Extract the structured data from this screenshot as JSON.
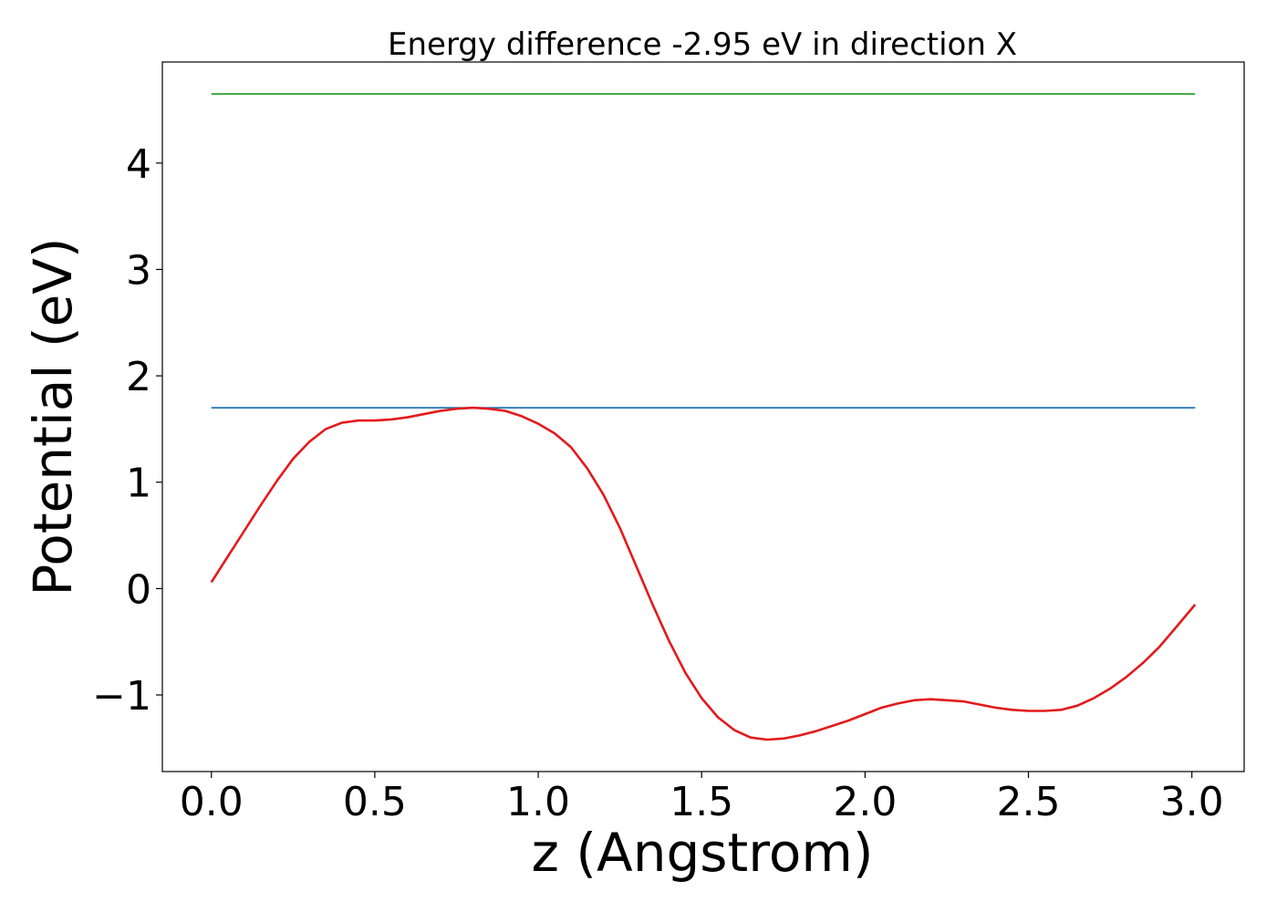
{
  "chart_data": {
    "type": "line",
    "title": "Energy difference -2.95 eV in direction X",
    "xlabel": "z (Angstrom)",
    "ylabel": "Potential (eV)",
    "xlim": [
      -0.15,
      3.16
    ],
    "ylim": [
      -1.72,
      4.95
    ],
    "xticks": [
      0.0,
      0.5,
      1.0,
      1.5,
      2.0,
      2.5,
      3.0
    ],
    "xtick_labels": [
      "0.0",
      "0.5",
      "1.0",
      "1.5",
      "2.0",
      "2.5",
      "3.0"
    ],
    "yticks": [
      -1,
      0,
      1,
      2,
      3,
      4
    ],
    "ytick_labels": [
      "−1",
      "0",
      "1",
      "2",
      "3",
      "4"
    ],
    "grid": false,
    "legend": false,
    "series": [
      {
        "color": "#2ca02c",
        "kind": "hline",
        "x": [
          0.0,
          3.01
        ],
        "y": [
          4.65,
          4.65
        ]
      },
      {
        "color": "#1f77b4",
        "kind": "hline",
        "x": [
          0.0,
          3.01
        ],
        "y": [
          1.7,
          1.7
        ]
      },
      {
        "color": "#e31a1c",
        "kind": "line",
        "x": [
          0.0,
          0.05,
          0.1,
          0.15,
          0.2,
          0.25,
          0.3,
          0.35,
          0.4,
          0.45,
          0.5,
          0.55,
          0.6,
          0.65,
          0.7,
          0.75,
          0.8,
          0.85,
          0.9,
          0.95,
          1.0,
          1.05,
          1.1,
          1.15,
          1.2,
          1.25,
          1.3,
          1.35,
          1.4,
          1.45,
          1.5,
          1.55,
          1.6,
          1.65,
          1.7,
          1.75,
          1.8,
          1.85,
          1.9,
          1.95,
          2.0,
          2.05,
          2.1,
          2.15,
          2.2,
          2.25,
          2.3,
          2.35,
          2.4,
          2.45,
          2.5,
          2.55,
          2.6,
          2.65,
          2.7,
          2.75,
          2.8,
          2.85,
          2.9,
          2.95,
          3.01
        ],
        "y": [
          0.06,
          0.3,
          0.54,
          0.78,
          1.01,
          1.22,
          1.38,
          1.5,
          1.56,
          1.58,
          1.58,
          1.59,
          1.61,
          1.64,
          1.67,
          1.69,
          1.7,
          1.69,
          1.67,
          1.62,
          1.55,
          1.46,
          1.33,
          1.13,
          0.88,
          0.57,
          0.21,
          -0.15,
          -0.49,
          -0.79,
          -1.03,
          -1.21,
          -1.33,
          -1.4,
          -1.42,
          -1.41,
          -1.38,
          -1.34,
          -1.29,
          -1.24,
          -1.18,
          -1.12,
          -1.08,
          -1.05,
          -1.04,
          -1.05,
          -1.06,
          -1.09,
          -1.12,
          -1.14,
          -1.15,
          -1.15,
          -1.14,
          -1.1,
          -1.03,
          -0.94,
          -0.83,
          -0.7,
          -0.55,
          -0.37,
          -0.15
        ]
      }
    ]
  }
}
